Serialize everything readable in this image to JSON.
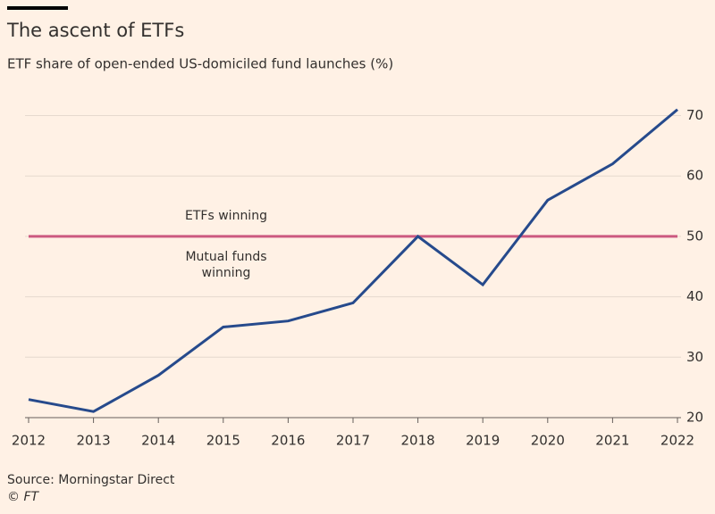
{
  "chart_data": {
    "type": "line",
    "title": "The ascent of ETFs",
    "subtitle": "ETF share of open-ended US-domiciled fund launches (%)",
    "categories": [
      "2012",
      "2013",
      "2014",
      "2015",
      "2016",
      "2017",
      "2018",
      "2019",
      "2020",
      "2021",
      "2022"
    ],
    "series": [
      {
        "name": "ETF share",
        "color": "#264a8c",
        "values": [
          23,
          21,
          27,
          35,
          36,
          39,
          50,
          42,
          56,
          62,
          71
        ]
      }
    ],
    "ylim": [
      20,
      72
    ],
    "yticks": [
      20,
      30,
      40,
      50,
      60,
      70
    ],
    "grid": true,
    "reference_line": {
      "value": 50,
      "color": "#cc5a80"
    },
    "annotations": [
      {
        "lines": [
          "ETFs winning"
        ]
      },
      {
        "lines": [
          "Mutual funds",
          "winning"
        ]
      }
    ],
    "source": "Source: Morningstar Direct",
    "credit": "© FT"
  }
}
